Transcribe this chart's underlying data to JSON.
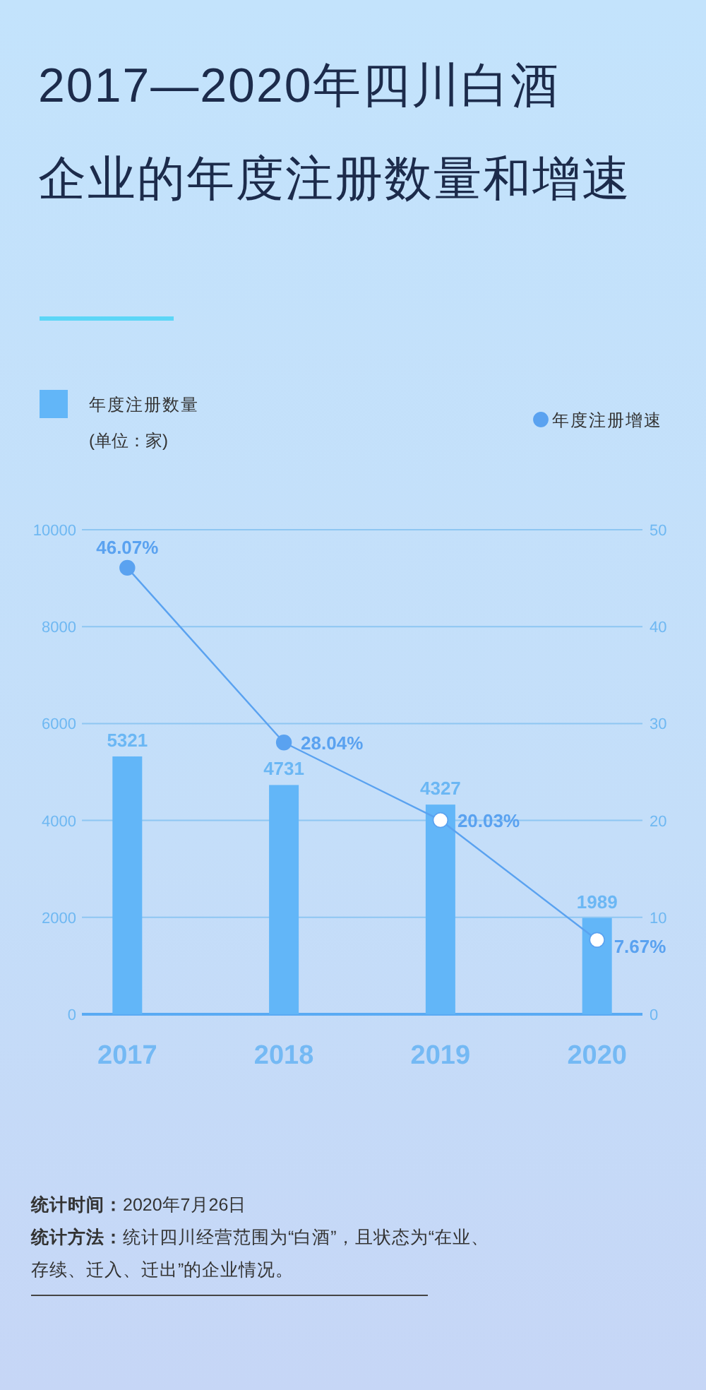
{
  "chart_data": {
    "type": "bar",
    "title": "2017—2020年四川白酒企业的年度注册数量和增速",
    "ylabel": "(单位：家)",
    "categories": [
      "2017",
      "2018",
      "2019",
      "2020"
    ],
    "series": [
      {
        "name": "年度注册数量",
        "color": "#62b6f8",
        "values": [
          5321,
          4731,
          4327,
          1989
        ],
        "value_labels": [
          "5321",
          "4731",
          "4327",
          "1989"
        ]
      },
      {
        "name": "年度注册增速",
        "type": "line",
        "axis": "y2",
        "color": "#5aa2f0",
        "colors": [
          "#5aa2f0",
          "#5aa2f0",
          "#ffffff",
          "#ffffff"
        ],
        "values": [
          46.07,
          28.04,
          20.03,
          7.67
        ],
        "value_labels": [
          "46.07%",
          "28.04%",
          "20.03%",
          "7.67%"
        ]
      }
    ],
    "ylim": [
      0,
      10000
    ],
    "yticks": [
      0,
      2000,
      4000,
      6000,
      8000,
      10000
    ],
    "y2lim": [
      0,
      50
    ],
    "y2ticks": [
      0,
      10,
      20,
      30,
      40,
      50
    ],
    "grid": "y",
    "legend": "top",
    "marker": "circle",
    "annotations": [
      "统计时间：2020年7月26日",
      "统计方法：统计四川经营范围为“白酒”，且状态为“在业、存续、迁入、迁出”的企业情况。"
    ]
  }
}
